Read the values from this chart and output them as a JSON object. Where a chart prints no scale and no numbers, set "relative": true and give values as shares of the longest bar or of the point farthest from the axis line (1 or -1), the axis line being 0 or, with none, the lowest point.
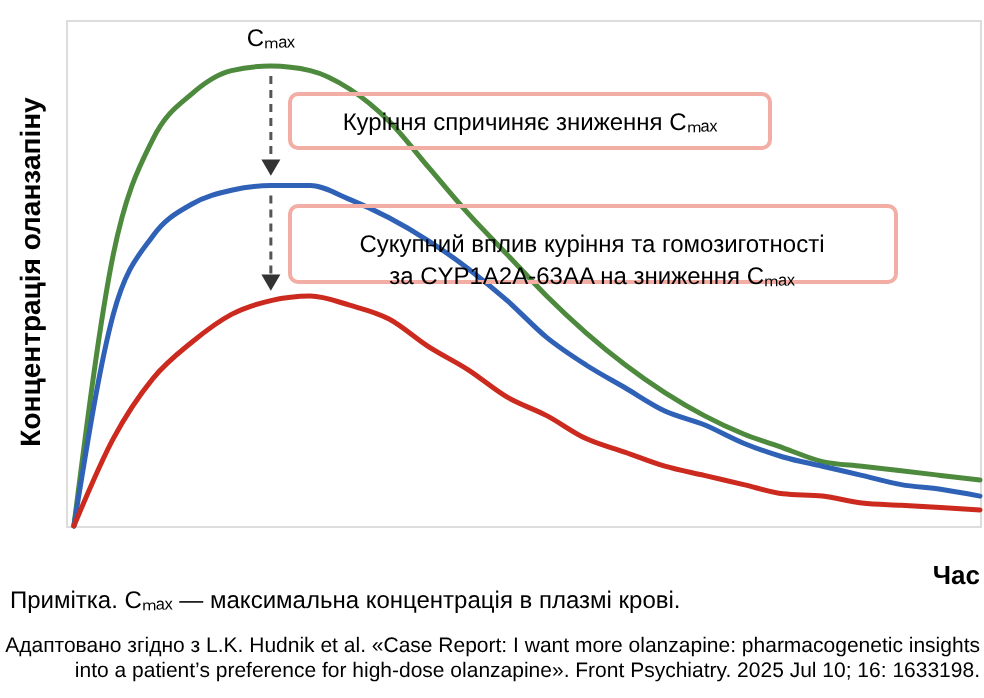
{
  "chart_data": {
    "type": "line",
    "relative": true,
    "ylabel": "Концентрація оланзапіну",
    "xlabel": "Час",
    "categories": [
      null,
      null,
      null,
      null,
      null,
      null,
      null,
      null,
      null,
      null,
      null,
      null,
      null,
      null,
      null,
      null,
      null,
      null,
      null,
      null,
      null,
      null,
      null,
      null
    ],
    "series": [
      {
        "color": "#4e8a3e",
        "values": [
          0,
          0.59,
          0.84,
          0.94,
          0.99,
          1.0,
          0.99,
          0.95,
          0.88,
          0.78,
          0.68,
          0.59,
          0.5,
          0.42,
          0.35,
          0.29,
          0.24,
          0.2,
          0.17,
          0.14,
          0.13,
          0.12,
          0.11,
          0.1
        ]
      },
      {
        "color": "#2f62b6",
        "values": [
          0,
          0.46,
          0.63,
          0.7,
          0.73,
          0.74,
          0.74,
          0.71,
          0.67,
          0.62,
          0.56,
          0.49,
          0.41,
          0.35,
          0.3,
          0.25,
          0.22,
          0.18,
          0.15,
          0.13,
          0.11,
          0.09,
          0.08,
          0.065
        ]
      },
      {
        "color": "#cc2a1e",
        "values": [
          0,
          0.19,
          0.32,
          0.4,
          0.46,
          0.49,
          0.5,
          0.48,
          0.45,
          0.39,
          0.34,
          0.28,
          0.24,
          0.19,
          0.16,
          0.13,
          0.11,
          0.09,
          0.07,
          0.065,
          0.05,
          0.045,
          0.04,
          0.035
        ]
      }
    ],
    "annotations": [
      "Cₘₐₓ",
      "Куріння спричиняє зниження Cₘₐₓ",
      "Сукупний вплив куріння та гомозиготності\nза CYP1A2A-63AA на зниження Cₘₐₓ",
      "Примітка. Cₘₐₓ — максимальна концентрація в плазмі крові.",
      "Адаптовано згідно з L.K. Hudnik et al. «Case Report: I want more olanzapine: pharmacogenetic insights\ninto a patient’s preference for high-dose olanzapine». Front Psychiatry. 2025 Jul 10; 16: 1633198."
    ],
    "grid": false,
    "tick_labels": false,
    "line_style": "solid"
  }
}
